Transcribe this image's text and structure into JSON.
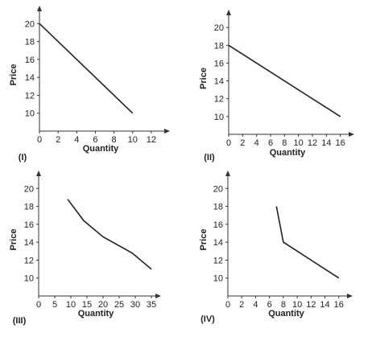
{
  "figure": {
    "panels": [
      "(I)",
      "(II)",
      "(III)",
      "(IV)"
    ]
  },
  "chart_data": [
    {
      "type": "line",
      "panel_label": "(I)",
      "xlabel": "Quantity",
      "ylabel": "Price",
      "xlim": [
        0,
        14
      ],
      "ylim": [
        8,
        22
      ],
      "xticks": [
        0,
        2,
        4,
        6,
        8,
        10,
        12
      ],
      "yticks": [
        10,
        12,
        14,
        16,
        18,
        20
      ],
      "x": [
        0,
        10
      ],
      "y": [
        20,
        10
      ]
    },
    {
      "type": "line",
      "panel_label": "(II)",
      "xlabel": "Quantity",
      "ylabel": "Price",
      "xlim": [
        0,
        18
      ],
      "ylim": [
        8,
        22
      ],
      "xticks": [
        0,
        2,
        4,
        6,
        8,
        10,
        12,
        14,
        16
      ],
      "yticks": [
        10,
        12,
        14,
        16,
        18,
        20
      ],
      "x": [
        0,
        16
      ],
      "y": [
        18,
        10
      ]
    },
    {
      "type": "line",
      "panel_label": "(III)",
      "xlabel": "Quantity",
      "ylabel": "Price",
      "xlim": [
        0,
        38
      ],
      "ylim": [
        8,
        22
      ],
      "xticks": [
        0,
        5,
        10,
        15,
        20,
        25,
        30,
        35
      ],
      "yticks": [
        10,
        12,
        14,
        16,
        18,
        20
      ],
      "x": [
        9,
        14,
        20,
        29,
        35
      ],
      "y": [
        18.8,
        16.4,
        14.6,
        12.8,
        11
      ]
    },
    {
      "type": "line",
      "panel_label": "(IV)",
      "xlabel": "Quantity",
      "ylabel": "Price",
      "xlim": [
        0,
        18
      ],
      "ylim": [
        8,
        22
      ],
      "xticks": [
        0,
        2,
        4,
        6,
        8,
        10,
        12,
        14,
        16
      ],
      "yticks": [
        10,
        12,
        14,
        16,
        18,
        20
      ],
      "x": [
        7,
        8,
        16
      ],
      "y": [
        18,
        14,
        10
      ]
    }
  ]
}
